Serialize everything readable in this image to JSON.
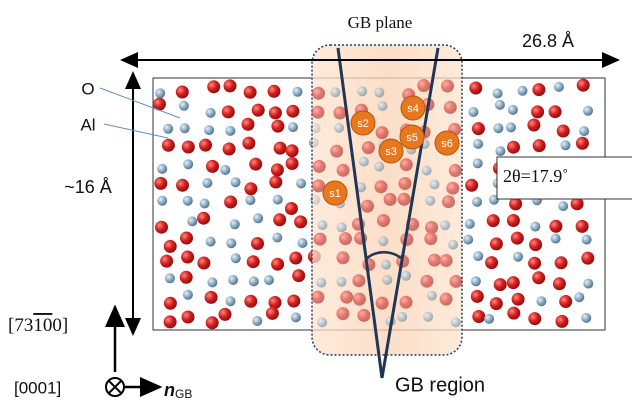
{
  "labels": {
    "gb_plane": "GB plane",
    "width": "26.8 Å",
    "height": "~16 Å",
    "oxygen": "O",
    "aluminum": "Al",
    "angle": "2θ=17.9˚",
    "direction_up": {
      "prefix": "[73",
      "overline": "10",
      "suffix": "0]"
    },
    "direction_out": "[0001]",
    "normal": {
      "base": "n",
      "sub": "GB"
    },
    "gb_region": "GB region"
  },
  "sites": [
    "s1",
    "s2",
    "s3",
    "s4",
    "s5",
    "s6"
  ]
}
